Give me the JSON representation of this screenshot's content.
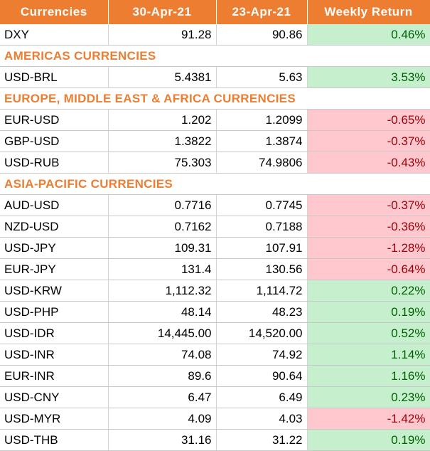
{
  "headers": [
    "Currencies",
    "30-Apr-21",
    "23-Apr-21",
    "Weekly Return"
  ],
  "rows": [
    {
      "type": "data",
      "name": "DXY",
      "v1": "91.28",
      "v2": "90.86",
      "ret": "0.46%",
      "sign": "pos"
    },
    {
      "type": "section",
      "name": "AMERICAS CURRENCIES"
    },
    {
      "type": "data",
      "name": "USD-BRL",
      "v1": "5.4381",
      "v2": "5.63",
      "ret": "3.53%",
      "sign": "pos"
    },
    {
      "type": "section",
      "name": "EUROPE, MIDDLE EAST & AFRICA CURRENCIES"
    },
    {
      "type": "data",
      "name": "EUR-USD",
      "v1": "1.202",
      "v2": "1.2099",
      "ret": "-0.65%",
      "sign": "neg"
    },
    {
      "type": "data",
      "name": "GBP-USD",
      "v1": "1.3822",
      "v2": "1.3874",
      "ret": "-0.37%",
      "sign": "neg"
    },
    {
      "type": "data",
      "name": "USD-RUB",
      "v1": "75.303",
      "v2": "74.9806",
      "ret": "-0.43%",
      "sign": "neg"
    },
    {
      "type": "section",
      "name": "ASIA-PACIFIC CURRENCIES"
    },
    {
      "type": "data",
      "name": "AUD-USD",
      "v1": "0.7716",
      "v2": "0.7745",
      "ret": "-0.37%",
      "sign": "neg"
    },
    {
      "type": "data",
      "name": "NZD-USD",
      "v1": "0.7162",
      "v2": "0.7188",
      "ret": "-0.36%",
      "sign": "neg"
    },
    {
      "type": "data",
      "name": "USD-JPY",
      "v1": "109.31",
      "v2": "107.91",
      "ret": "-1.28%",
      "sign": "neg"
    },
    {
      "type": "data",
      "name": "EUR-JPY",
      "v1": "131.4",
      "v2": "130.56",
      "ret": "-0.64%",
      "sign": "neg"
    },
    {
      "type": "data",
      "name": "USD-KRW",
      "v1": "1,112.32",
      "v2": "1,114.72",
      "ret": "0.22%",
      "sign": "pos"
    },
    {
      "type": "data",
      "name": "USD-PHP",
      "v1": "48.14",
      "v2": "48.23",
      "ret": "0.19%",
      "sign": "pos"
    },
    {
      "type": "data",
      "name": "USD-IDR",
      "v1": "14,445.00",
      "v2": "14,520.00",
      "ret": "0.52%",
      "sign": "pos"
    },
    {
      "type": "data",
      "name": "USD-INR",
      "v1": "74.08",
      "v2": "74.92",
      "ret": "1.14%",
      "sign": "pos"
    },
    {
      "type": "data",
      "name": "EUR-INR",
      "v1": "89.6",
      "v2": "90.64",
      "ret": "1.16%",
      "sign": "pos"
    },
    {
      "type": "data",
      "name": "USD-CNY",
      "v1": "6.47",
      "v2": "6.49",
      "ret": "0.23%",
      "sign": "pos"
    },
    {
      "type": "data",
      "name": "USD-MYR",
      "v1": "4.09",
      "v2": "4.03",
      "ret": "-1.42%",
      "sign": "neg"
    },
    {
      "type": "data",
      "name": "USD-THB",
      "v1": "31.16",
      "v2": "31.22",
      "ret": "0.19%",
      "sign": "pos"
    }
  ]
}
